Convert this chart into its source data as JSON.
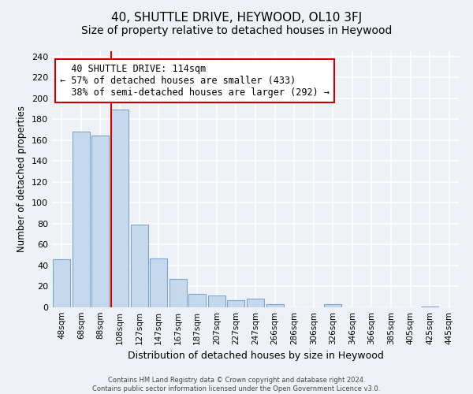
{
  "title": "40, SHUTTLE DRIVE, HEYWOOD, OL10 3FJ",
  "subtitle": "Size of property relative to detached houses in Heywood",
  "xlabel": "Distribution of detached houses by size in Heywood",
  "ylabel": "Number of detached properties",
  "bar_labels": [
    "48sqm",
    "68sqm",
    "88sqm",
    "108sqm",
    "127sqm",
    "147sqm",
    "167sqm",
    "187sqm",
    "207sqm",
    "227sqm",
    "247sqm",
    "266sqm",
    "286sqm",
    "306sqm",
    "326sqm",
    "346sqm",
    "366sqm",
    "385sqm",
    "405sqm",
    "425sqm",
    "445sqm"
  ],
  "bar_values": [
    46,
    168,
    164,
    189,
    79,
    47,
    27,
    13,
    11,
    7,
    8,
    3,
    0,
    0,
    3,
    0,
    0,
    0,
    0,
    1,
    0
  ],
  "bar_color": "#c6d9ec",
  "bar_edge_color": "#7aa8cc",
  "property_line_label": "40 SHUTTLE DRIVE: 114sqm",
  "smaller_pct": "57%",
  "smaller_count": 433,
  "larger_pct": "38%",
  "larger_count": 292,
  "vline_color": "#cc0000",
  "annotation_box_edge": "#cc0000",
  "ylim": [
    0,
    245
  ],
  "yticks": [
    0,
    20,
    40,
    60,
    80,
    100,
    120,
    140,
    160,
    180,
    200,
    220,
    240
  ],
  "footer_line1": "Contains HM Land Registry data © Crown copyright and database right 2024.",
  "footer_line2": "Contains public sector information licensed under the Open Government Licence v3.0.",
  "background_color": "#eef2f7",
  "plot_bg_color": "#eef2f7",
  "grid_color": "#ffffff",
  "title_fontsize": 11,
  "subtitle_fontsize": 10
}
